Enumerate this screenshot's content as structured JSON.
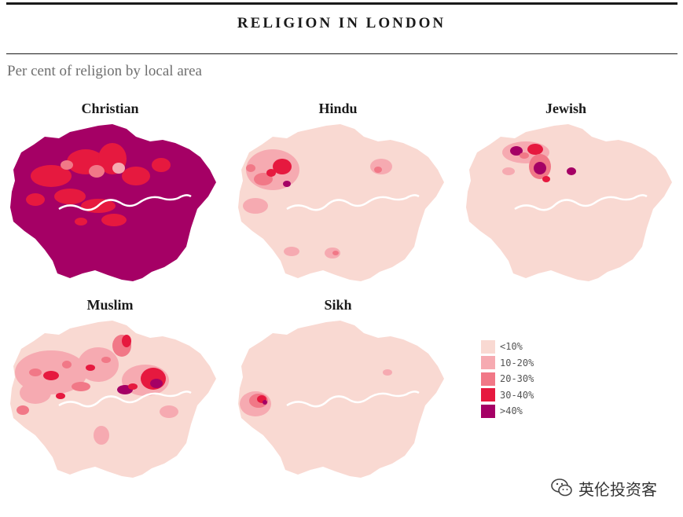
{
  "title": "RELIGION IN LONDON",
  "subtitle": "Per cent of religion by local area",
  "colors": {
    "lt10": "#f9d9d2",
    "10_20": "#f6aab1",
    "20_30": "#f17887",
    "30_40": "#e6193f",
    "gt40": "#a50065",
    "river": "#ffffff"
  },
  "panels": [
    {
      "label": "Christian",
      "dominant_level": "gt40"
    },
    {
      "label": "Hindu",
      "dominant_level": "lt10"
    },
    {
      "label": "Jewish",
      "dominant_level": "lt10"
    },
    {
      "label": "Muslim",
      "dominant_level": "lt10"
    },
    {
      "label": "Sikh",
      "dominant_level": "lt10"
    }
  ],
  "legend": {
    "items": [
      {
        "label": "<10%",
        "color": "#f9d9d2"
      },
      {
        "label": "10-20%",
        "color": "#f6aab1"
      },
      {
        "label": "20-30%",
        "color": "#f17887"
      },
      {
        "label": "30-40%",
        "color": "#e6193f"
      },
      {
        "label": ">40%",
        "color": "#a50065"
      }
    ]
  },
  "watermark": {
    "text": "英伦投资客",
    "icon": "wechat-icon"
  }
}
